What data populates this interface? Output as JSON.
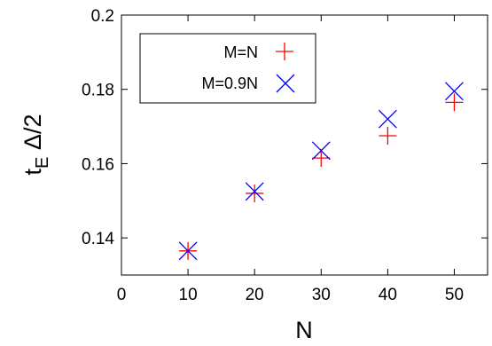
{
  "chart_data": {
    "type": "scatter",
    "title": "",
    "xlabel": "N",
    "ylabel_main": "t",
    "ylabel_sub": "E",
    "ylabel_rest": " Δ/2",
    "xlim": [
      0,
      55
    ],
    "ylim": [
      0.13,
      0.2
    ],
    "x_ticks": [
      0,
      10,
      20,
      30,
      40,
      50
    ],
    "x_tick_labels": [
      "0",
      "10",
      "20",
      "30",
      "40",
      "50"
    ],
    "y_ticks": [
      0.14,
      0.16,
      0.18,
      0.2
    ],
    "y_tick_labels": [
      "0.14",
      "0.16",
      "0.18",
      "0.2"
    ],
    "grid": false,
    "legend_position": "top-left",
    "series": [
      {
        "name": "M=N",
        "marker": "plus",
        "color": "#ff0000",
        "x": [
          10,
          20,
          30,
          40,
          50
        ],
        "y": [
          0.1365,
          0.152,
          0.1615,
          0.1675,
          0.1765
        ]
      },
      {
        "name": "M=0.9N",
        "marker": "cross",
        "color": "#0000ff",
        "x": [
          10,
          20,
          30,
          40,
          50
        ],
        "y": [
          0.1365,
          0.1525,
          0.1635,
          0.172,
          0.1795
        ]
      }
    ]
  }
}
